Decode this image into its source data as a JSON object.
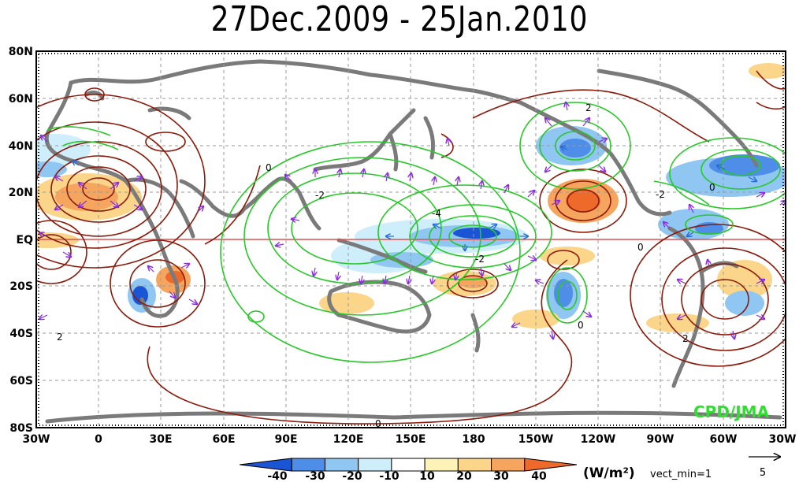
{
  "title": "27Dec.2009 - 25Jan.2010",
  "watermark": "CPD/JMA",
  "lat_labels": [
    "80N",
    "60N",
    "40N",
    "20N",
    "EQ",
    "20S",
    "40S",
    "60S",
    "80S"
  ],
  "lon_labels": [
    "30W",
    "0",
    "30E",
    "60E",
    "90E",
    "120E",
    "150E",
    "180",
    "150W",
    "120W",
    "90W",
    "60W",
    "30W"
  ],
  "contour_labels": {
    "c1": "2",
    "c2": "0",
    "c3": "-2",
    "c4": "-4",
    "c5": "-2",
    "c6": "2",
    "c7": "0",
    "c8": "-2",
    "c9": "0",
    "c10": "0",
    "c11": "2",
    "c12": "0"
  },
  "colorbar": {
    "ticks": [
      "-40",
      "-30",
      "-20",
      "-10",
      "10",
      "20",
      "30",
      "40"
    ],
    "colors": [
      "#1a55d6",
      "#4f8ee8",
      "#8fc6f2",
      "#cdeefa",
      "#ffffff",
      "#fdf2b8",
      "#fad58a",
      "#f6a55e",
      "#ee6a2a"
    ],
    "unit_label": "(W/m²)"
  },
  "vector_note": "vect_min=1",
  "vector_reference": "5",
  "colors": {
    "positive_contour": "#8b1a0a",
    "negative_contour": "#28c828",
    "land": "#7a7a7a",
    "equator": "#e05050",
    "grid": "#9a9a9a",
    "vector_purple": "#8a2be2",
    "vector_blue": "#2a6ad8",
    "watermark": "#2ee02e"
  }
}
